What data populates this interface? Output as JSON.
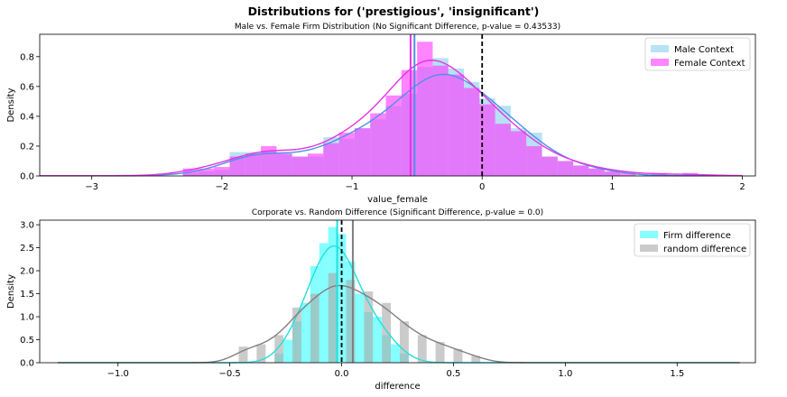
{
  "suptitle": "Distributions for ('prestigious', 'insignificant')",
  "chart_data": [
    {
      "type": "histogram",
      "title": "Male vs. Female Firm Distribution (No Significant Difference, p-value = 0.43533)",
      "xlabel": "value_female",
      "ylabel": "Density",
      "xlim": [
        -3.4,
        2.1
      ],
      "ylim": [
        0,
        0.95
      ],
      "xticks": [
        -3,
        -2,
        -1,
        0,
        1,
        2
      ],
      "yticks": [
        0.0,
        0.2,
        0.4,
        0.6,
        0.8
      ],
      "xtick_labels": [
        "−3",
        "−2",
        "−1",
        "0",
        "1",
        "2"
      ],
      "ytick_labels": [
        "0.0",
        "0.2",
        "0.4",
        "0.6",
        "0.8"
      ],
      "legend_position": "top-right",
      "bin_width": 0.12,
      "series": [
        {
          "name": "Male Context",
          "color": "#87ceeb",
          "kde_color": "#4f8fe8",
          "mean": -0.52,
          "bins": [
            {
              "x0": -2.3,
              "h": 0.02
            },
            {
              "x0": -2.18,
              "h": 0.03
            },
            {
              "x0": -2.06,
              "h": 0.04
            },
            {
              "x0": -1.94,
              "h": 0.16
            },
            {
              "x0": -1.82,
              "h": 0.16
            },
            {
              "x0": -1.7,
              "h": 0.17
            },
            {
              "x0": -1.58,
              "h": 0.15
            },
            {
              "x0": -1.46,
              "h": 0.13
            },
            {
              "x0": -1.34,
              "h": 0.13
            },
            {
              "x0": -1.22,
              "h": 0.26
            },
            {
              "x0": -1.1,
              "h": 0.25
            },
            {
              "x0": -0.98,
              "h": 0.32
            },
            {
              "x0": -0.86,
              "h": 0.38
            },
            {
              "x0": -0.74,
              "h": 0.47
            },
            {
              "x0": -0.62,
              "h": 0.55
            },
            {
              "x0": -0.5,
              "h": 0.73
            },
            {
              "x0": -0.38,
              "h": 0.79
            },
            {
              "x0": -0.26,
              "h": 0.72
            },
            {
              "x0": -0.14,
              "h": 0.63
            },
            {
              "x0": -0.02,
              "h": 0.52
            },
            {
              "x0": 0.1,
              "h": 0.47
            },
            {
              "x0": 0.22,
              "h": 0.32
            },
            {
              "x0": 0.34,
              "h": 0.29
            },
            {
              "x0": 0.46,
              "h": 0.13
            },
            {
              "x0": 0.58,
              "h": 0.1
            },
            {
              "x0": 0.7,
              "h": 0.07
            },
            {
              "x0": 0.82,
              "h": 0.05
            },
            {
              "x0": 0.94,
              "h": 0.03
            }
          ]
        },
        {
          "name": "Female Context",
          "color": "#ff33ff",
          "kde_color": "#e633e6",
          "mean": -0.55,
          "bins": [
            {
              "x0": -2.3,
              "h": 0.05
            },
            {
              "x0": -2.18,
              "h": 0.05
            },
            {
              "x0": -2.06,
              "h": 0.06
            },
            {
              "x0": -1.94,
              "h": 0.13
            },
            {
              "x0": -1.82,
              "h": 0.15
            },
            {
              "x0": -1.7,
              "h": 0.2
            },
            {
              "x0": -1.58,
              "h": 0.15
            },
            {
              "x0": -1.46,
              "h": 0.13
            },
            {
              "x0": -1.34,
              "h": 0.15
            },
            {
              "x0": -1.22,
              "h": 0.22
            },
            {
              "x0": -1.1,
              "h": 0.29
            },
            {
              "x0": -0.98,
              "h": 0.32
            },
            {
              "x0": -0.86,
              "h": 0.42
            },
            {
              "x0": -0.74,
              "h": 0.54
            },
            {
              "x0": -0.62,
              "h": 0.71
            },
            {
              "x0": -0.5,
              "h": 0.9
            },
            {
              "x0": -0.38,
              "h": 0.74
            },
            {
              "x0": -0.26,
              "h": 0.68
            },
            {
              "x0": -0.14,
              "h": 0.59
            },
            {
              "x0": -0.02,
              "h": 0.48
            },
            {
              "x0": 0.1,
              "h": 0.35
            },
            {
              "x0": 0.22,
              "h": 0.3
            },
            {
              "x0": 0.34,
              "h": 0.2
            },
            {
              "x0": 0.46,
              "h": 0.13
            },
            {
              "x0": 0.58,
              "h": 0.1
            },
            {
              "x0": 0.7,
              "h": 0.07
            },
            {
              "x0": 0.82,
              "h": 0.05
            },
            {
              "x0": 0.94,
              "h": 0.03
            },
            {
              "x0": 1.06,
              "h": 0.02
            },
            {
              "x0": 1.3,
              "h": 0.02
            },
            {
              "x0": 1.54,
              "h": 0.02
            }
          ]
        }
      ],
      "kde_range": [
        -3.4,
        2.0
      ],
      "reference_line": 0
    },
    {
      "type": "histogram",
      "title": "Corporate vs. Random Difference (Significant Difference, p-value = 0.0)",
      "xlabel": "difference",
      "ylabel": "Density",
      "xlim": [
        -1.35,
        1.85
      ],
      "ylim": [
        0,
        3.1
      ],
      "xticks": [
        -1.0,
        -0.5,
        0.0,
        0.5,
        1.0,
        1.5
      ],
      "yticks": [
        0.0,
        0.5,
        1.0,
        1.5,
        2.0,
        2.5,
        3.0
      ],
      "xtick_labels": [
        "−1.0",
        "−0.5",
        "0.0",
        "0.5",
        "1.0",
        "1.5"
      ],
      "ytick_labels": [
        "0.0",
        "0.5",
        "1.0",
        "1.5",
        "2.0",
        "2.5",
        "3.0"
      ],
      "legend_position": "top-right",
      "bin_width": 0.04,
      "series": [
        {
          "name": "Firm difference",
          "color": "#33ffff",
          "kde_color": "#22e0e0",
          "mean": -0.02,
          "bins": [
            {
              "x0": -0.3,
              "h": 0.2
            },
            {
              "x0": -0.26,
              "h": 0.5
            },
            {
              "x0": -0.22,
              "h": 0.9
            },
            {
              "x0": -0.18,
              "h": 1.3
            },
            {
              "x0": -0.14,
              "h": 2.1
            },
            {
              "x0": -0.1,
              "h": 2.6
            },
            {
              "x0": -0.06,
              "h": 2.95
            },
            {
              "x0": -0.02,
              "h": 2.8
            },
            {
              "x0": 0.02,
              "h": 2.2
            },
            {
              "x0": 0.06,
              "h": 1.5
            },
            {
              "x0": 0.1,
              "h": 1.1
            },
            {
              "x0": 0.14,
              "h": 1.0
            },
            {
              "x0": 0.18,
              "h": 0.6
            },
            {
              "x0": 0.22,
              "h": 0.4
            },
            {
              "x0": 0.26,
              "h": 0.2
            }
          ]
        },
        {
          "name": "random difference",
          "color": "#a9a9a9",
          "kde_color": "#808080",
          "mean": 0.05,
          "bins": [
            {
              "x0": -0.46,
              "h": 0.35
            },
            {
              "x0": -0.38,
              "h": 0.4
            },
            {
              "x0": -0.3,
              "h": 0.6
            },
            {
              "x0": -0.22,
              "h": 1.2
            },
            {
              "x0": -0.14,
              "h": 1.5
            },
            {
              "x0": -0.06,
              "h": 1.95
            },
            {
              "x0": 0.02,
              "h": 1.8
            },
            {
              "x0": 0.1,
              "h": 1.55
            },
            {
              "x0": 0.18,
              "h": 1.3
            },
            {
              "x0": 0.26,
              "h": 0.9
            },
            {
              "x0": 0.34,
              "h": 0.6
            },
            {
              "x0": 0.42,
              "h": 0.45
            },
            {
              "x0": 0.5,
              "h": 0.3
            },
            {
              "x0": 0.58,
              "h": 0.15
            }
          ]
        }
      ],
      "kde_range": [
        -1.27,
        1.78
      ],
      "reference_line": 0
    }
  ]
}
